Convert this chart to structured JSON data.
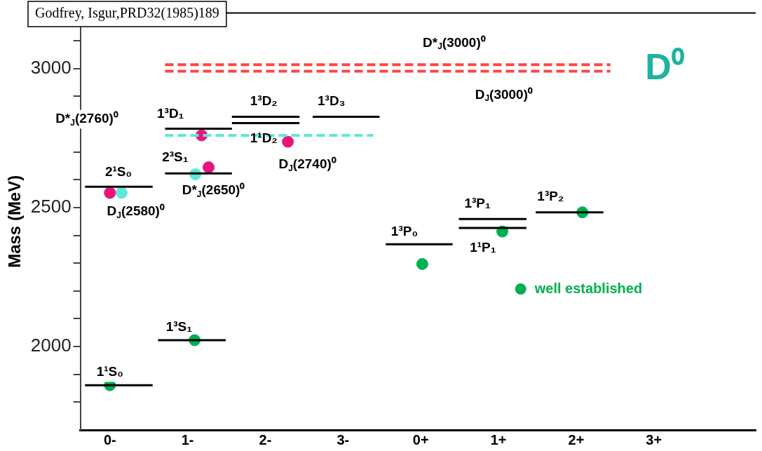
{
  "chart_data": {
    "type": "scatter",
    "title": "D⁰",
    "ylabel": "Mass (MeV)",
    "xlim": [
      -0.38,
      8.31
    ],
    "xticks": [
      {
        "value": 0,
        "label": "0-"
      },
      {
        "value": 1,
        "label": "1-"
      },
      {
        "value": 2,
        "label": "2-"
      },
      {
        "value": 3,
        "label": "3-"
      },
      {
        "value": 4,
        "label": "0+"
      },
      {
        "value": 5,
        "label": "1+"
      },
      {
        "value": 6,
        "label": "2+"
      },
      {
        "value": 7,
        "label": "3+"
      }
    ],
    "ylim": [
      1700,
      3200
    ],
    "yticks": [
      {
        "value": 1800,
        "label": null
      },
      {
        "value": 1900,
        "label": null
      },
      2000,
      {
        "value": 2100,
        "label": null
      },
      {
        "value": 2200,
        "label": null
      },
      {
        "value": 2300,
        "label": null
      },
      {
        "value": 2400,
        "label": null
      },
      2500,
      {
        "value": 2600,
        "label": null
      },
      {
        "value": 2700,
        "label": null
      },
      {
        "value": 2800,
        "label": null
      },
      {
        "value": 2900,
        "label": null
      },
      3000,
      {
        "value": 3100,
        "label": null
      }
    ],
    "legend": "right",
    "series": [
      {
        "type": "line",
        "marker": "none",
        "color": "#000000",
        "x": [
          -0.32,
          0.55
        ],
        "values": [
          1861,
          1861
        ]
      },
      {
        "type": "line",
        "marker": "none",
        "color": "#000000",
        "x": [
          -0.32,
          0.55
        ],
        "values": [
          2575,
          2575
        ]
      },
      {
        "type": "line",
        "marker": "none",
        "color": "#000000",
        "x": [
          0.62,
          1.49
        ],
        "values": [
          2023,
          2023
        ]
      },
      {
        "type": "line",
        "marker": "none",
        "color": "#000000",
        "x": [
          0.71,
          1.57
        ],
        "values": [
          2623,
          2623
        ]
      },
      {
        "type": "line",
        "marker": "none",
        "color": "#000000",
        "x": [
          0.71,
          1.57
        ],
        "values": [
          2784,
          2784
        ]
      },
      {
        "type": "line",
        "marker": "none",
        "color": "#000000",
        "x": [
          1.57,
          2.44
        ],
        "values": [
          2827,
          2827
        ]
      },
      {
        "type": "line",
        "marker": "none",
        "color": "#000000",
        "x": [
          1.57,
          2.44
        ],
        "values": [
          2804,
          2804
        ]
      },
      {
        "type": "line",
        "marker": "none",
        "color": "#000000",
        "x": [
          2.61,
          3.47
        ],
        "values": [
          2827,
          2827
        ]
      },
      {
        "type": "line",
        "marker": "none",
        "color": "#000000",
        "x": [
          3.55,
          4.41
        ],
        "values": [
          2368,
          2368
        ]
      },
      {
        "type": "line",
        "marker": "none",
        "color": "#000000",
        "x": [
          4.49,
          5.36
        ],
        "values": [
          2459,
          2459
        ]
      },
      {
        "type": "line",
        "marker": "none",
        "color": "#000000",
        "x": [
          4.49,
          5.36
        ],
        "values": [
          2427,
          2427
        ]
      },
      {
        "type": "line",
        "marker": "none",
        "color": "#000000",
        "x": [
          5.48,
          6.35
        ],
        "values": [
          2483,
          2483
        ]
      },
      {
        "type": "line",
        "line_style": "dashed",
        "marker": "none",
        "color": "#5ee8d8",
        "x": [
          0.71,
          3.39
        ],
        "values": [
          2760,
          2760
        ]
      },
      {
        "type": "line",
        "line_style": "dashed",
        "marker": "none",
        "color": "#ff4444",
        "x": [
          0.71,
          6.44
        ],
        "values": [
          3014,
          3014
        ]
      },
      {
        "type": "line",
        "line_style": "dashed",
        "marker": "none",
        "color": "#ff4444",
        "x": [
          0.71,
          6.44
        ],
        "values": [
          2991,
          2991
        ]
      },
      {
        "marker": "circle",
        "color": "#e8157a",
        "x": [
          0.0,
          1.18,
          1.27,
          2.29
        ],
        "values": [
          2553,
          2760,
          2645,
          2737
        ]
      },
      {
        "marker": "circle",
        "color": "#5ee8d8",
        "x": [
          0.15,
          1.1
        ],
        "values": [
          2553,
          2620
        ]
      },
      {
        "marker": "circle",
        "color": "#00b050",
        "name": "well established",
        "x": [
          0.0,
          1.09,
          4.02,
          5.05,
          6.08
        ],
        "values": [
          1861,
          2023,
          2297,
          2414,
          2483
        ]
      }
    ],
    "annotations": [
      "Godfrey, Isgur,PRD32(1985)189",
      {
        "text": "1¹S₀",
        "x": 0.0,
        "y": 1861
      },
      {
        "text": "1³S₁",
        "x": 0.89,
        "y": 2023
      },
      {
        "text": "2¹S₀",
        "x": 0.11,
        "y": 2575
      },
      {
        "text": "D$_{J}$(2580)⁰",
        "x": 0.0,
        "y": 2553
      },
      {
        "text": "2³S₁",
        "x": 0.84,
        "y": 2623
      },
      {
        "text": "D*$_{J}$(2650)⁰",
        "x": 1.27,
        "y": 2645
      },
      "D*$_{J}$(2760)⁰",
      {
        "text": "1³D₁",
        "x": 0.78,
        "y": 2784
      },
      {
        "text": "1³D₂",
        "x": 1.98,
        "y": 2827
      },
      {
        "text": "1¹D₂",
        "x": 1.98,
        "y": 2804
      },
      {
        "text": "D$_{J}$(2740)⁰",
        "x": 2.29,
        "y": 2737
      },
      {
        "text": "1³D₃",
        "x": 2.85,
        "y": 2827
      },
      {
        "text": "D*$_{J}$(3000)⁰",
        "x": 4.43,
        "y": 3014
      },
      {
        "text": "D$_{J}$(3000)⁰",
        "x": 5.07,
        "y": 2991
      },
      {
        "text": "1³P₀",
        "x": 3.79,
        "y": 2368
      },
      {
        "text": "1³P₁",
        "x": 4.73,
        "y": 2459
      },
      {
        "text": "1¹P₁",
        "x": 4.8,
        "y": 2427
      },
      {
        "text": "1³P₂",
        "x": 5.67,
        "y": 2483
      }
    ]
  }
}
